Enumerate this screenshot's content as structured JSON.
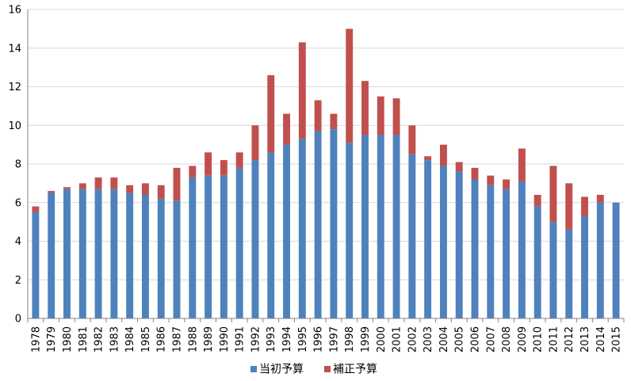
{
  "chart_data": {
    "type": "bar",
    "stacked": true,
    "categories": [
      "1978",
      "1979",
      "1980",
      "1981",
      "1982",
      "1983",
      "1984",
      "1985",
      "1986",
      "1987",
      "1988",
      "1989",
      "1990",
      "1991",
      "1992",
      "1993",
      "1994",
      "1995",
      "1996",
      "1997",
      "1998",
      "1999",
      "2000",
      "2001",
      "2002",
      "2003",
      "2004",
      "2005",
      "2006",
      "2007",
      "2008",
      "2009",
      "2010",
      "2011",
      "2012",
      "2013",
      "2014",
      "2015"
    ],
    "series": [
      {
        "name": "当初予算",
        "color": "#4F81BD",
        "values": [
          5.5,
          6.5,
          6.7,
          6.7,
          6.7,
          6.7,
          6.5,
          6.4,
          6.2,
          6.1,
          7.3,
          7.4,
          7.4,
          7.8,
          8.2,
          8.6,
          9.0,
          9.3,
          9.7,
          9.8,
          9.1,
          9.5,
          9.5,
          9.5,
          8.5,
          8.2,
          7.9,
          7.6,
          7.2,
          6.9,
          6.7,
          7.1,
          5.8,
          5.0,
          4.6,
          5.3,
          6.0,
          6.0
        ]
      },
      {
        "name": "補正予算",
        "color": "#C0504D",
        "values": [
          0.3,
          0.1,
          0.1,
          0.3,
          0.6,
          0.6,
          0.4,
          0.6,
          0.7,
          1.7,
          0.6,
          1.2,
          0.8,
          0.8,
          1.8,
          4.0,
          1.6,
          5.0,
          1.6,
          0.8,
          5.9,
          2.8,
          2.0,
          1.9,
          1.5,
          0.2,
          1.1,
          0.5,
          0.6,
          0.5,
          0.5,
          1.7,
          0.6,
          2.9,
          2.4,
          1.0,
          0.4,
          0.0
        ]
      }
    ],
    "ylim": [
      0,
      16
    ],
    "yticks": [
      0,
      2,
      4,
      6,
      8,
      10,
      12,
      14,
      16
    ],
    "grid": true,
    "legend": "bottom",
    "title": "",
    "xlabel": "",
    "ylabel": ""
  }
}
